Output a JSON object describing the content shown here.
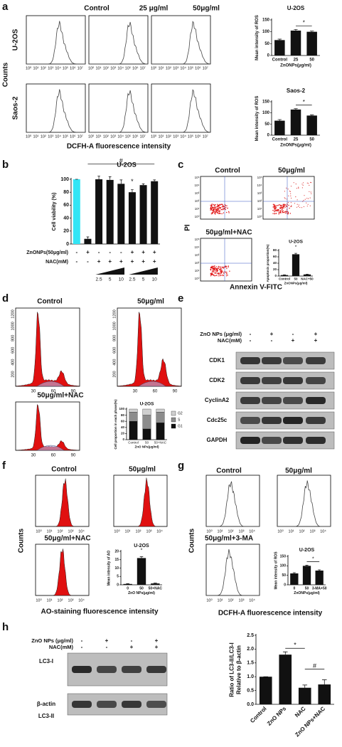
{
  "panels": {
    "a": {
      "label": "a",
      "columns": [
        "Control",
        "25 μg/ml",
        "50μg/ml"
      ],
      "rows": [
        "U-2OS",
        "Saos-2"
      ],
      "ylabel": "Counts",
      "xlabel": "DCFH-A fluorescence intensity",
      "xticks": [
        "10⁰",
        "10¹",
        "10²",
        "10³",
        "10⁴",
        "10⁵",
        "10⁶",
        "10⁷"
      ]
    },
    "b": {
      "label": "b",
      "treatments": [
        {
          "name": "ZnONPs(50μg/ml)",
          "signs": [
            "-",
            "+",
            "-",
            "-",
            "-",
            "+",
            "+",
            "+"
          ]
        },
        {
          "name": "NAC(mM)",
          "signs": [
            "-",
            "-",
            "+",
            "+",
            "+",
            "+",
            "+",
            "+"
          ]
        }
      ],
      "doses": [
        "2.5",
        "5",
        "10",
        "2.5",
        "5",
        "10"
      ]
    },
    "c": {
      "label": "c",
      "titles": [
        "Control",
        "50μg/ml",
        "50μg/ml+NAC"
      ],
      "ylabel": "PI",
      "xlabel": "Annexin V-FITC",
      "ticks": [
        "10⁰",
        "10¹",
        "10²",
        "10³",
        "10⁴",
        "10⁵"
      ]
    },
    "d": {
      "label": "d",
      "titles": [
        "Control",
        "50μg/ml",
        "50μg/ml+NAC"
      ],
      "xticks": [
        "30",
        "60",
        "90"
      ],
      "yticks": [
        "200",
        "400",
        "600",
        "800",
        "1000",
        "1200"
      ]
    },
    "e": {
      "label": "e",
      "treatments": [
        {
          "name": "ZnO NPs (μg/ml)",
          "signs": [
            "-",
            "+",
            "-",
            "+"
          ]
        },
        {
          "name": "NAC(mM)",
          "signs": [
            "-",
            "-",
            "+",
            "+"
          ]
        }
      ],
      "bands": [
        "CDK1",
        "CDK2",
        "CyclinA2",
        "Cdc25c",
        "GAPDH"
      ]
    },
    "f": {
      "label": "f",
      "titles": [
        "Control",
        "50μg/ml",
        "50μg/ml+NAC"
      ],
      "ylabel": "Counts",
      "xlabel": "AO-staining fluorescence intensity",
      "xticks": [
        "10⁰",
        "10¹",
        "10²",
        "10³",
        "10⁴"
      ]
    },
    "g": {
      "label": "g",
      "titles": [
        "Control",
        "50μg/ml",
        "50μg/ml+3-MA"
      ],
      "ylabel": "Counts",
      "xlabel": "DCFH-A fluorescence intensity",
      "xticks": [
        "10⁰",
        "10¹",
        "10²",
        "10³",
        "10⁴"
      ]
    },
    "h": {
      "label": "h",
      "treatments": [
        {
          "name": "ZnO NPs (μg/ml)",
          "signs": [
            "-",
            "+",
            "-",
            "+"
          ]
        },
        {
          "name": "NAC(mM)",
          "signs": [
            "-",
            "-",
            "+",
            "+"
          ]
        }
      ],
      "bands": [
        "LC3-I",
        "LC3-II",
        "β-actin"
      ]
    }
  },
  "chart_data": [
    {
      "type": "bar",
      "title": "U-2OS",
      "ylabel": "Mean intensity of ROS",
      "xlabel": "ZnONPs(μg/ml)",
      "categories": [
        "Control",
        "25",
        "50"
      ],
      "values": [
        65,
        105,
        100
      ],
      "errors": [
        4,
        5,
        3
      ],
      "color": "#111111",
      "ylim": [
        0,
        150
      ],
      "yticks": [
        0,
        50,
        100,
        150
      ],
      "annotations": [
        "*"
      ]
    },
    {
      "type": "bar",
      "title": "Saos-2",
      "ylabel": "Mean intensity of ROS",
      "xlabel": "ZnONPs(μg/ml)",
      "categories": [
        "Control",
        "25",
        "50"
      ],
      "values": [
        65,
        115,
        88
      ],
      "errors": [
        5,
        4,
        3
      ],
      "color": "#111111",
      "ylim": [
        0,
        150
      ],
      "yticks": [
        0,
        50,
        100,
        150
      ],
      "annotations": [
        "*"
      ]
    },
    {
      "type": "bar",
      "title": "U-2OS",
      "ylabel": "Cell viability (%)",
      "values": [
        100,
        8,
        100,
        99,
        93,
        80,
        91,
        97
      ],
      "errors": [
        0,
        3,
        5,
        5,
        6,
        4,
        2,
        2
      ],
      "colors": [
        "#33e5f5",
        "#111111",
        "#111111",
        "#111111",
        "#111111",
        "#111111",
        "#111111",
        "#111111"
      ],
      "ylim": [
        0,
        100
      ],
      "yticks": [
        0,
        20,
        40,
        60,
        80,
        100
      ],
      "annotations": [
        "#",
        "*"
      ]
    },
    {
      "type": "bar",
      "title": "U-2OS",
      "ylabel": "Apoptosis proportion(%)",
      "xlabel": "ZnONPs(μg/ml)",
      "categories": [
        "Control",
        "50",
        "NAC+50"
      ],
      "values": [
        3,
        68,
        5
      ],
      "errors": [
        1,
        3,
        1
      ],
      "color": "#111111",
      "ylim": [
        0,
        80
      ],
      "yticks": [
        0,
        20,
        40,
        60,
        80
      ],
      "annotations": [
        "*"
      ]
    },
    {
      "type": "stacked_bar",
      "title": "U-2OS",
      "ylabel": "Cell proportion in each phase(%)",
      "xlabel": "ZnO NPs(μg/ml)",
      "categories": [
        "Control",
        "50",
        "50+NAC"
      ],
      "series": [
        {
          "name": "G1",
          "color": "#111111",
          "values": [
            60,
            35,
            55
          ]
        },
        {
          "name": "S",
          "color": "#8c8c8c",
          "values": [
            30,
            45,
            35
          ]
        },
        {
          "name": "G2",
          "color": "#cfcfcf",
          "values": [
            10,
            20,
            10
          ]
        }
      ],
      "ylim": [
        0,
        100
      ],
      "yticks": [
        0,
        20,
        40,
        60,
        80,
        100
      ]
    },
    {
      "type": "bar",
      "title": "U-2OS",
      "ylabel": "Mean intensity of AO",
      "xlabel": "ZnO NPs(μg/ml)",
      "categories": [
        "0",
        "50",
        "50+NAC"
      ],
      "values": [
        0.5,
        16,
        0.8
      ],
      "errors": [
        0.2,
        0.8,
        0.2
      ],
      "color": "#111111",
      "ylim": [
        0,
        20
      ],
      "yticks": [
        0,
        5,
        10,
        15,
        20
      ],
      "annotations": [
        "*"
      ]
    },
    {
      "type": "bar",
      "title": "U-2OS",
      "ylabel": "Mean intensity of ROS",
      "xlabel": "ZnONPs(μg/ml)",
      "categories": [
        "0",
        "50",
        "3-MA+50"
      ],
      "values": [
        60,
        100,
        75
      ],
      "errors": [
        4,
        3,
        4
      ],
      "color": "#111111",
      "ylim": [
        0,
        150
      ],
      "yticks": [
        0,
        50,
        100,
        150
      ],
      "annotations": [
        "*"
      ]
    },
    {
      "type": "bar",
      "ylabel": [
        "Ratio of LC3-II/LC3-I",
        "Relative to β-actin"
      ],
      "categories": [
        "Control",
        "ZnO NPs",
        "NAC",
        "ZnO NPs+NAC"
      ],
      "values": [
        1.0,
        1.8,
        0.6,
        0.72
      ],
      "errors": [
        0,
        0.1,
        0.1,
        0.17
      ],
      "color": "#111111",
      "ylim": [
        0,
        2.5
      ],
      "yticks": [
        {
          "value": 0,
          "label": "0.0"
        },
        {
          "value": 0.5,
          "label": "0.5"
        },
        {
          "value": 1,
          "label": "1.0"
        },
        {
          "value": 1.5,
          "label": "1.5"
        },
        {
          "value": 2,
          "label": "2.0"
        },
        {
          "value": 2.5,
          "label": "2.5"
        }
      ],
      "annotations": [
        "*",
        "#"
      ]
    }
  ]
}
